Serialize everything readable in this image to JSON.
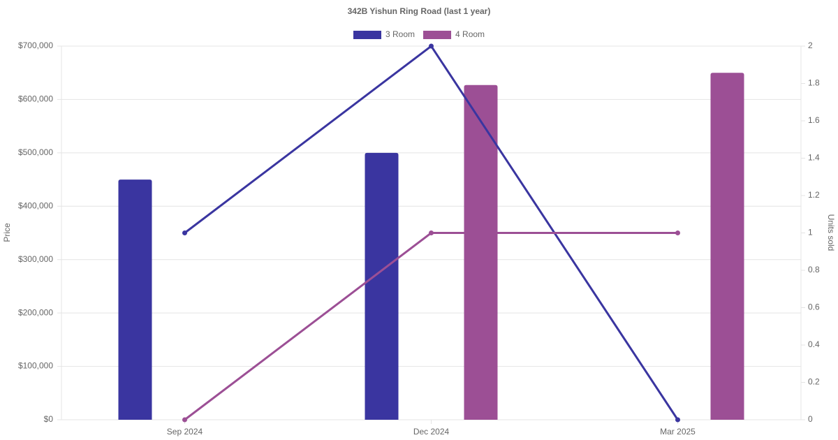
{
  "chart_data": {
    "type": "combo",
    "title": "342B Yishun Ring Road (last 1 year)",
    "categories": [
      "Sep 2024",
      "Dec 2024",
      "Mar 2025"
    ],
    "series": [
      {
        "name": "3 Room",
        "color": "#3a35a0",
        "values": [
          450000,
          500000,
          null
        ],
        "units_sold": [
          1,
          2,
          0
        ]
      },
      {
        "name": "4 Room",
        "color": "#9c4f95",
        "values": [
          null,
          627000,
          650000
        ],
        "units_sold": [
          0,
          1,
          1
        ]
      }
    ],
    "y_label": "Price",
    "y2_label": "Units sold",
    "ylim": [
      0,
      700000
    ],
    "yticks": [
      {
        "value": 0,
        "label": "$0"
      },
      {
        "value": 100000,
        "label": "$100,000"
      },
      {
        "value": 200000,
        "label": "$200,000"
      },
      {
        "value": 300000,
        "label": "$300,000"
      },
      {
        "value": 400000,
        "label": "$400,000"
      },
      {
        "value": 500000,
        "label": "$500,000"
      },
      {
        "value": 600000,
        "label": "$600,000"
      },
      {
        "value": 700000,
        "label": "$700,000"
      }
    ],
    "y2lim": [
      0,
      2
    ],
    "y2ticks": [
      0,
      0.2,
      0.4,
      0.6,
      0.8,
      1,
      1.2,
      1.4,
      1.6,
      1.8,
      2
    ],
    "grid": true,
    "legend": "top"
  }
}
